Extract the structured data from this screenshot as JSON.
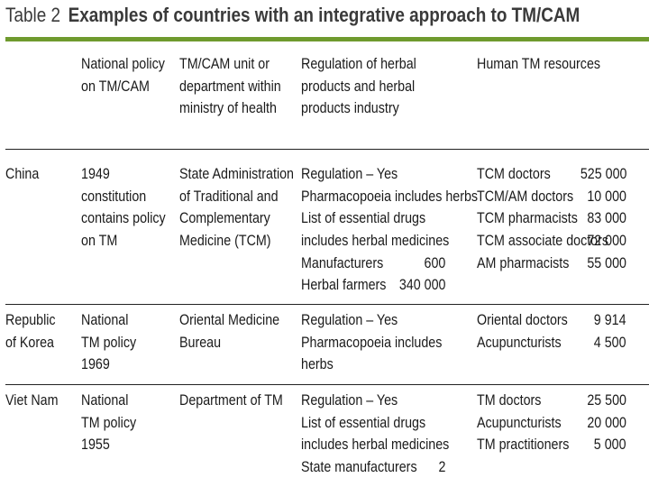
{
  "title": {
    "label": "Table 2",
    "text": "Examples of countries with an integrative approach to TM/CAM"
  },
  "columns": [
    [
      "National policy",
      "on TM/CAM"
    ],
    [
      "TM/CAM unit or",
      "department within",
      "ministry of health"
    ],
    [
      "Regulation of herbal",
      "products and herbal",
      "products industry"
    ],
    [
      "Human TM resources"
    ]
  ],
  "rows": [
    {
      "country": [
        "China"
      ],
      "policy": [
        "1949",
        "constitution",
        "contains policy",
        "on TM"
      ],
      "unit": [
        "State Administration",
        "of Traditional and",
        "Complementary",
        "Medicine (TCM)"
      ],
      "regulation": [
        {
          "text": "Regulation – Yes",
          "value": ""
        },
        {
          "text": "Pharmacopoeia includes herbs",
          "value": ""
        },
        {
          "text": "List of essential drugs",
          "value": ""
        },
        {
          "text": "includes herbal medicines",
          "value": ""
        },
        {
          "text": "Manufacturers",
          "value": "600"
        },
        {
          "text": "Herbal farmers",
          "value": "340 000"
        }
      ],
      "resources": [
        {
          "name": "TCM doctors",
          "value": "525 000"
        },
        {
          "name": "TCM/AM doctors",
          "value": "10 000"
        },
        {
          "name": "TCM pharmacists",
          "value": "83 000"
        },
        {
          "name": "TCM associate doctors",
          "value": "72 000"
        },
        {
          "name": "AM pharmacists",
          "value": "55 000"
        }
      ]
    },
    {
      "country": [
        "Republic",
        "of Korea"
      ],
      "policy": [
        "National",
        "TM policy",
        "1969"
      ],
      "unit": [
        "Oriental Medicine",
        "Bureau"
      ],
      "regulation": [
        {
          "text": "Regulation – Yes",
          "value": ""
        },
        {
          "text": "Pharmacopoeia includes",
          "value": ""
        },
        {
          "text": "herbs",
          "value": ""
        }
      ],
      "resources": [
        {
          "name": "Oriental doctors",
          "value": "9 914"
        },
        {
          "name": "Acupuncturists",
          "value": "4 500"
        }
      ]
    },
    {
      "country": [
        "Viet Nam"
      ],
      "policy": [
        "National",
        "TM policy",
        "1955"
      ],
      "unit": [
        "Department of TM"
      ],
      "regulation": [
        {
          "text": "Regulation – Yes",
          "value": ""
        },
        {
          "text": "List of essential drugs",
          "value": ""
        },
        {
          "text": "includes herbal medicines",
          "value": ""
        },
        {
          "text": "State manufacturers",
          "value": "2"
        }
      ],
      "resources": [
        {
          "name": "TM doctors",
          "value": "25 500"
        },
        {
          "name": "Acupuncturists",
          "value": "20 000"
        },
        {
          "name": "TM practitioners",
          "value": "5 000"
        }
      ]
    }
  ]
}
